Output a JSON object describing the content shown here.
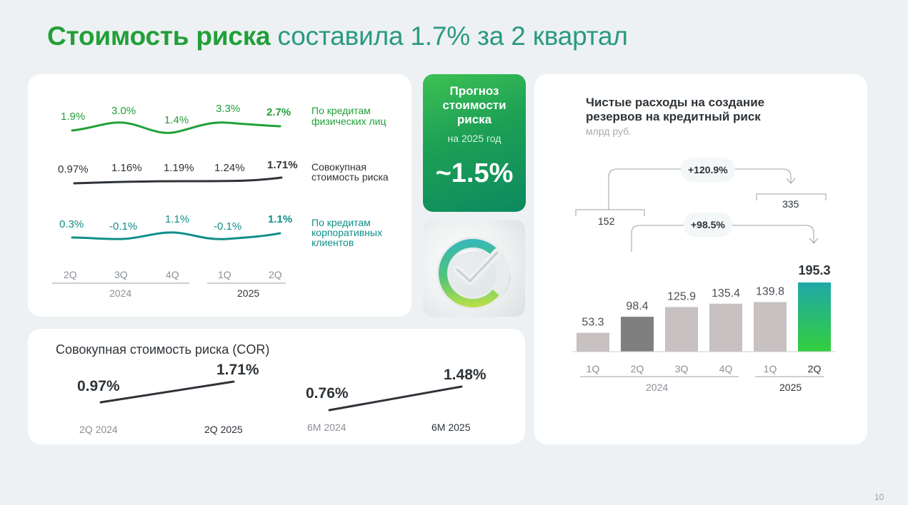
{
  "header": {
    "title_bold": "Стоимость риска",
    "title_rest": "составила 1.7% за 2 квартал"
  },
  "trend_panel": {
    "periods": [
      "2Q",
      "3Q",
      "4Q",
      "1Q",
      "2Q"
    ],
    "years": [
      "2024",
      "2025"
    ],
    "series": [
      {
        "name": "individuals",
        "label_line1": "По кредитам",
        "label_line2": "физических лиц",
        "label_line3": "",
        "values": [
          "1.9%",
          "3.0%",
          "1.4%",
          "3.3%",
          "2.7%"
        ],
        "color": "#21a038"
      },
      {
        "name": "total",
        "label_line1": "Совокупная",
        "label_line2": "стоимость риска",
        "label_line3": "",
        "values": [
          "0.97%",
          "1.16%",
          "1.19%",
          "1.24%",
          "1.71%"
        ],
        "color": "#2e3338"
      },
      {
        "name": "corporate",
        "label_line1": "По кредитам",
        "label_line2": "корпоративных",
        "label_line3": "клиентов",
        "values": [
          "0.3%",
          "-0.1%",
          "1.1%",
          "-0.1%",
          "1.1%"
        ],
        "color": "#0f8f8a"
      }
    ]
  },
  "forecast": {
    "line1": "Прогноз",
    "line2": "стоимости",
    "line3": "риска",
    "sub": "на 2025 год",
    "value": "~1.5%"
  },
  "cor_panel": {
    "title": "Совокупная стоимость риска (COR)",
    "pairs": [
      {
        "from_value": "0.97%",
        "to_value": "1.71%",
        "from_label": "2Q 2024",
        "to_label": "2Q 2025"
      },
      {
        "from_value": "0.76%",
        "to_value": "1.48%",
        "from_label": "6M 2024",
        "to_label": "6M 2025"
      }
    ]
  },
  "chart_data": {
    "type": "bar",
    "title": "Чистые расходы на создание резервов на кредитный риск",
    "title_line1": "Чистые расходы на создание",
    "title_line2": "резервов на кредитный риск",
    "unit": "млрд руб.",
    "categories": [
      "1Q",
      "2Q",
      "3Q",
      "4Q",
      "1Q",
      "2Q"
    ],
    "values": [
      53.3,
      98.4,
      125.9,
      135.4,
      139.8,
      195.3
    ],
    "value_labels": [
      "53.3",
      "98.4",
      "125.9",
      "135.4",
      "139.8",
      "195.3"
    ],
    "years": [
      "2024",
      "2025"
    ],
    "bar_colors": [
      "#c7c1c1",
      "#7f7f7f",
      "#c7c1c1",
      "#c7c1c1",
      "#c7c1c1",
      "gradient"
    ],
    "ylim": [
      0,
      195.3
    ],
    "annotations": {
      "group_h1_2024": "152",
      "group_h1_2025": "335",
      "growth_half_year": "+120.9%",
      "growth_quarter": "+98.5%"
    }
  },
  "page_number": "10"
}
